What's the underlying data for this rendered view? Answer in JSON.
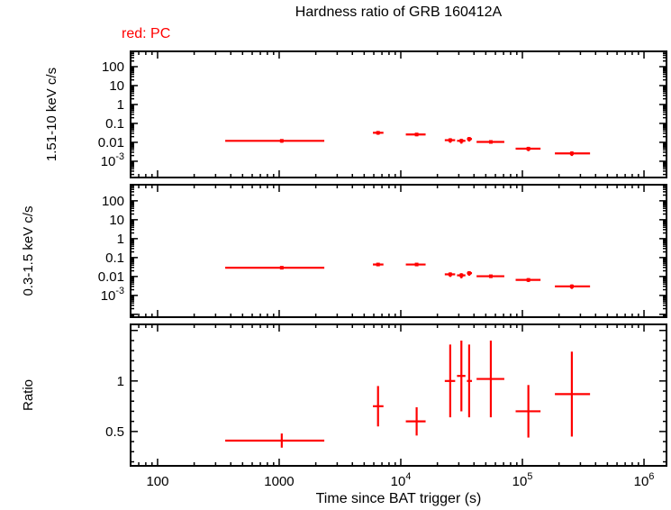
{
  "page": {
    "title": "Hardness ratio of GRB 160412A",
    "mode_label": "red: PC"
  },
  "colors": {
    "data": "#ff0000",
    "axis": "#000000",
    "background": "#ffffff"
  },
  "chart_data": {
    "type": "scatter",
    "title": "Hardness ratio of GRB 160412A",
    "xlabel": "Time since BAT trigger (s)",
    "x_scale": "log",
    "x_range": [
      60,
      1531000
    ],
    "x_major_ticks": [
      100,
      1000,
      10000,
      100000,
      1000000
    ],
    "x_tick_labels": [
      "100",
      "1000",
      "10^4",
      "10^5",
      "10^6"
    ],
    "legend": "red: PC",
    "series_color": "#ff0000",
    "panels": [
      {
        "name": "hard-band",
        "ylabel": "1.51-10 keV c/s",
        "y_scale": "log",
        "y_range": [
          0.000138,
          645
        ],
        "y_major_ticks": [
          100,
          10,
          1,
          0.1,
          0.01,
          0.001
        ],
        "y_tick_labels": [
          "100",
          "10",
          "1",
          "0.1",
          "0.01",
          "10^-3"
        ],
        "marker": true,
        "points": [
          {
            "t_lo": 360,
            "t": 1050,
            "t_hi": 2350,
            "y": 0.012,
            "y_err": 0.0025
          },
          {
            "t_lo": 5900,
            "t": 6500,
            "t_hi": 7200,
            "y": 0.032,
            "y_err": 0.007
          },
          {
            "t_lo": 11000,
            "t": 13500,
            "t_hi": 16000,
            "y": 0.026,
            "y_err": 0.005
          },
          {
            "t_lo": 23000,
            "t": 25500,
            "t_hi": 28000,
            "y": 0.013,
            "y_err": 0.0035
          },
          {
            "t_lo": 29000,
            "t": 31500,
            "t_hi": 34000,
            "y": 0.012,
            "y_err": 0.0035
          },
          {
            "t_lo": 35000,
            "t": 36500,
            "t_hi": 38500,
            "y": 0.015,
            "y_err": 0.004
          },
          {
            "t_lo": 42000,
            "t": 55000,
            "t_hi": 71000,
            "y": 0.0105,
            "y_err": 0.002
          },
          {
            "t_lo": 88000,
            "t": 112000,
            "t_hi": 141000,
            "y": 0.0046,
            "y_err": 0.0012
          },
          {
            "t_lo": 185000,
            "t": 255000,
            "t_hi": 360000,
            "y": 0.0026,
            "y_err": 0.0007
          }
        ]
      },
      {
        "name": "soft-band",
        "ylabel": "0.3-1.5 keV c/s",
        "y_scale": "log",
        "y_range": [
          7.08e-05,
          708
        ],
        "y_major_ticks": [
          100,
          10,
          1,
          0.1,
          0.01,
          0.001
        ],
        "y_tick_labels": [
          "100",
          "10",
          "1",
          "0.1",
          "0.01",
          "10^-3"
        ],
        "marker": true,
        "points": [
          {
            "t_lo": 360,
            "t": 1050,
            "t_hi": 2350,
            "y": 0.029,
            "y_err": 0.004
          },
          {
            "t_lo": 5900,
            "t": 6500,
            "t_hi": 7200,
            "y": 0.043,
            "y_err": 0.008
          },
          {
            "t_lo": 11000,
            "t": 13500,
            "t_hi": 16000,
            "y": 0.043,
            "y_err": 0.007
          },
          {
            "t_lo": 23000,
            "t": 25500,
            "t_hi": 28000,
            "y": 0.013,
            "y_err": 0.0035
          },
          {
            "t_lo": 29000,
            "t": 31500,
            "t_hi": 34000,
            "y": 0.0115,
            "y_err": 0.0035
          },
          {
            "t_lo": 35000,
            "t": 36500,
            "t_hi": 38500,
            "y": 0.015,
            "y_err": 0.004
          },
          {
            "t_lo": 42000,
            "t": 55000,
            "t_hi": 71000,
            "y": 0.0103,
            "y_err": 0.002
          },
          {
            "t_lo": 88000,
            "t": 112000,
            "t_hi": 141000,
            "y": 0.0066,
            "y_err": 0.0015
          },
          {
            "t_lo": 185000,
            "t": 255000,
            "t_hi": 360000,
            "y": 0.003,
            "y_err": 0.0008
          }
        ]
      },
      {
        "name": "ratio",
        "ylabel": "Ratio",
        "y_scale": "linear",
        "y_range": [
          0.16,
          1.56
        ],
        "y_major_ticks": [
          0.5,
          1
        ],
        "y_tick_labels": [
          "0.5",
          "1"
        ],
        "y_minor_step": 0.1,
        "marker": false,
        "points": [
          {
            "t_lo": 360,
            "t": 1050,
            "t_hi": 2350,
            "y": 0.41,
            "y_err": 0.07
          },
          {
            "t_lo": 5900,
            "t": 6500,
            "t_hi": 7200,
            "y": 0.75,
            "y_err": 0.2
          },
          {
            "t_lo": 11000,
            "t": 13500,
            "t_hi": 16000,
            "y": 0.6,
            "y_err": 0.14
          },
          {
            "t_lo": 23000,
            "t": 25500,
            "t_hi": 28000,
            "y": 1.0,
            "y_err": 0.36
          },
          {
            "t_lo": 29000,
            "t": 31500,
            "t_hi": 34000,
            "y": 1.05,
            "y_err": 0.35
          },
          {
            "t_lo": 35000,
            "t": 36500,
            "t_hi": 38500,
            "y": 1.0,
            "y_err": 0.36
          },
          {
            "t_lo": 42000,
            "t": 55000,
            "t_hi": 71000,
            "y": 1.02,
            "y_err": 0.38
          },
          {
            "t_lo": 88000,
            "t": 112000,
            "t_hi": 141000,
            "y": 0.7,
            "y_err": 0.26
          },
          {
            "t_lo": 185000,
            "t": 255000,
            "t_hi": 360000,
            "y": 0.87,
            "y_err": 0.42
          }
        ]
      }
    ]
  }
}
